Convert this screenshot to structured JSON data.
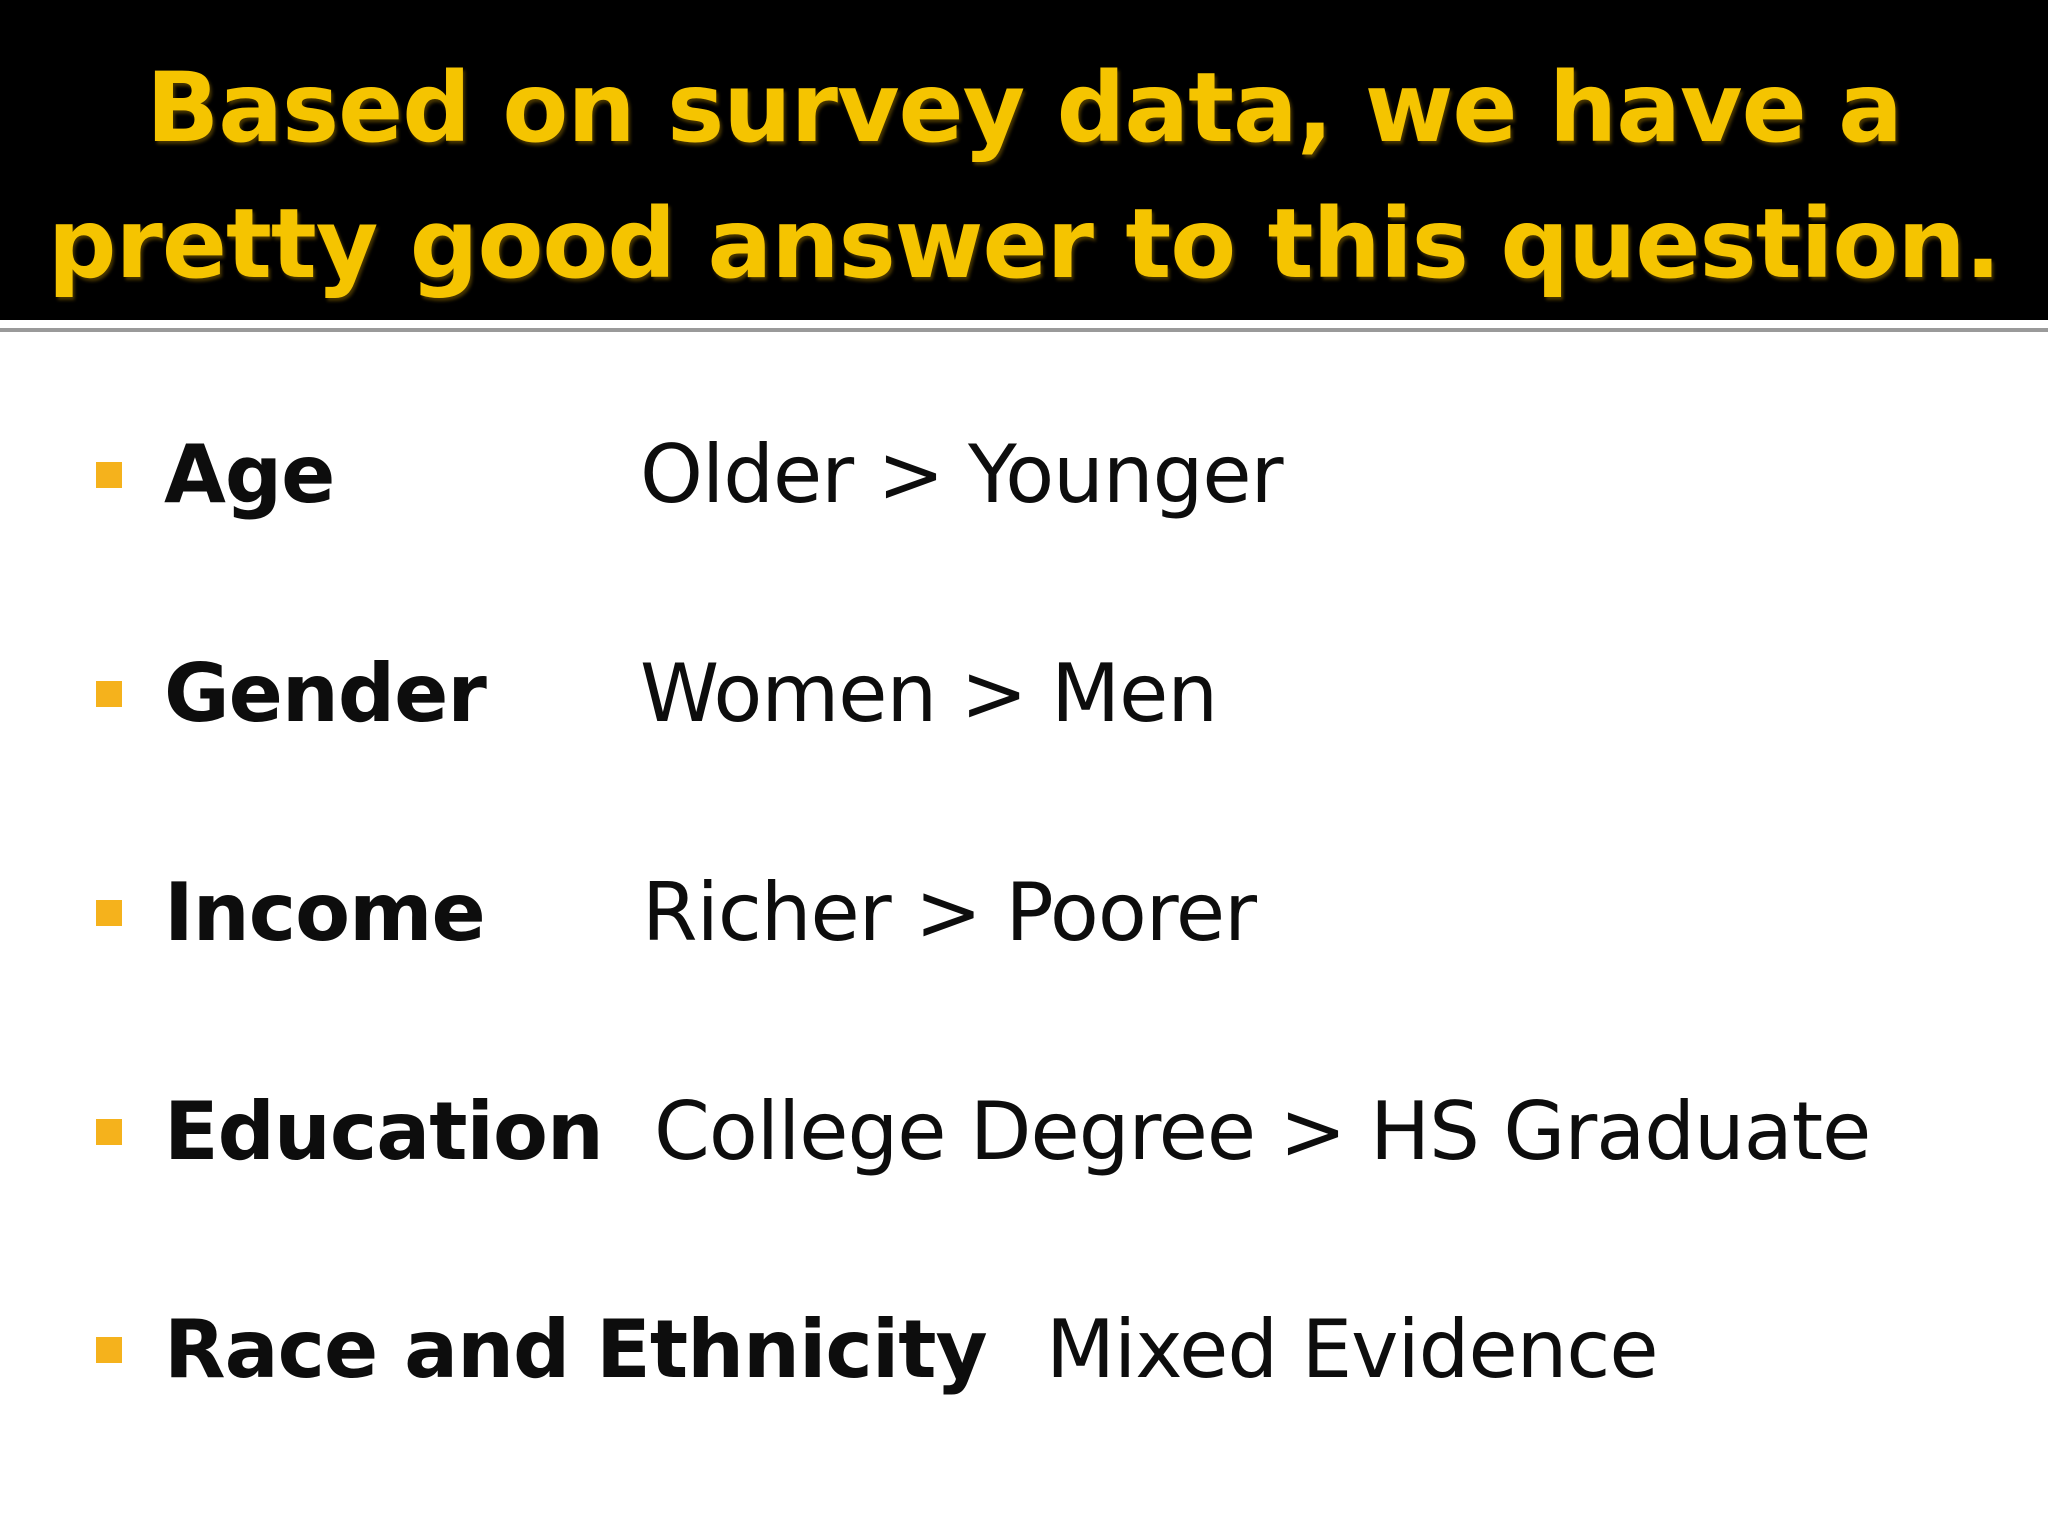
{
  "slide": {
    "title": "Based on survey data, we have a pretty good answer to this question.",
    "colors": {
      "title_band": "#000000",
      "title_text": "#f5c400",
      "bullet_marker": "#f5b21c",
      "body_text": "#0d0d0d"
    },
    "bullets": [
      {
        "label": "Age",
        "value": "Older > Younger"
      },
      {
        "label": "Gender",
        "value": "Women > Men"
      },
      {
        "label": "Income",
        "value": "Richer > Poorer"
      },
      {
        "label": "Education",
        "value": "College Degree > HS Graduate"
      },
      {
        "label": "Race and Ethnicity",
        "value": "Mixed Evidence"
      }
    ]
  }
}
